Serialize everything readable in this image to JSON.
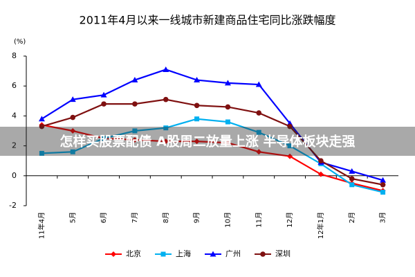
{
  "chart_data": {
    "type": "line",
    "title": "2011年4月以来一线城市新建商品住宅同比涨跌幅度",
    "y_label": "(%)",
    "categories": [
      "11年4月",
      "5月",
      "6月",
      "7月",
      "8月",
      "9月",
      "10月",
      "11月",
      "12月",
      "12年1月",
      "2月",
      "3月"
    ],
    "series": [
      {
        "name": "北京",
        "color": "#ff0000",
        "marker": "diamond",
        "values": [
          3.4,
          3.0,
          2.5,
          2.4,
          2.3,
          2.3,
          2.2,
          1.6,
          1.3,
          0.1,
          -0.5,
          -1.0
        ]
      },
      {
        "name": "上海",
        "color": "#00b0f0",
        "marker": "square",
        "values": [
          1.5,
          1.6,
          2.5,
          3.0,
          3.2,
          3.8,
          3.6,
          2.9,
          2.0,
          0.8,
          -0.6,
          -1.1
        ]
      },
      {
        "name": "广州",
        "color": "#0000ff",
        "marker": "triangle",
        "values": [
          3.8,
          5.1,
          5.4,
          6.4,
          7.1,
          6.4,
          6.2,
          6.1,
          3.5,
          0.9,
          0.3,
          -0.3
        ]
      },
      {
        "name": "深圳",
        "color": "#7f1010",
        "marker": "circle",
        "values": [
          3.3,
          3.9,
          4.8,
          4.8,
          5.1,
          4.7,
          4.6,
          4.2,
          3.3,
          1.0,
          -0.2,
          -0.6
        ]
      }
    ],
    "ylim": [
      -2,
      8
    ],
    "yticks": [
      -2,
      0,
      2,
      4,
      6,
      8
    ],
    "legend": "bottom"
  },
  "overlay_text": "怎样买股票配债 A股周二放量上涨 半导体板块走强"
}
